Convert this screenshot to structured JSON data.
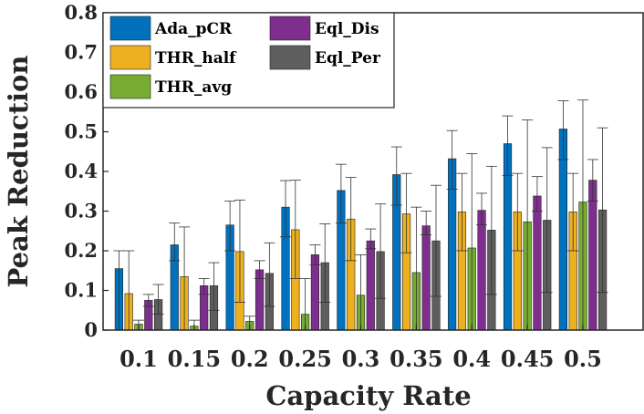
{
  "chart_data": {
    "type": "bar",
    "title": "",
    "xlabel": "Capacity Rate",
    "ylabel": "Peak Reduction",
    "ylim": [
      0,
      0.8
    ],
    "yticks": [
      "0",
      "0.1",
      "0.2",
      "0.3",
      "0.4",
      "0.5",
      "0.6",
      "0.7",
      "0.8"
    ],
    "categories": [
      "0.1",
      "0.15",
      "0.2",
      "0.25",
      "0.3",
      "0.35",
      "0.4",
      "0.45",
      "0.5"
    ],
    "legend_position": "top-left",
    "series": [
      {
        "name": "Ada_pCR",
        "color": "#0072BD",
        "values": [
          0.155,
          0.215,
          0.265,
          0.31,
          0.352,
          0.392,
          0.432,
          0.47,
          0.507
        ],
        "err_low": [
          0.0,
          0.175,
          0.2,
          0.235,
          0.27,
          0.315,
          0.355,
          0.39,
          0.43
        ],
        "err_high": [
          0.2,
          0.27,
          0.325,
          0.377,
          0.418,
          0.462,
          0.503,
          0.54,
          0.578
        ]
      },
      {
        "name": "THR_half",
        "color": "#EDB120",
        "values": [
          0.092,
          0.135,
          0.198,
          0.253,
          0.28,
          0.293,
          0.298,
          0.298,
          0.298
        ],
        "err_low": [
          0.0,
          0.0,
          0.07,
          0.13,
          0.175,
          0.195,
          0.2,
          0.2,
          0.2
        ],
        "err_high": [
          0.2,
          0.26,
          0.328,
          0.378,
          0.385,
          0.395,
          0.395,
          0.395,
          0.395
        ]
      },
      {
        "name": "THR_avg",
        "color": "#77AC30",
        "values": [
          0.015,
          0.01,
          0.022,
          0.04,
          0.088,
          0.145,
          0.207,
          0.273,
          0.323
        ],
        "err_low": [
          0.0,
          0.0,
          0.0,
          0.0,
          0.0,
          0.0,
          0.0,
          0.0,
          0.0
        ],
        "err_high": [
          0.025,
          0.025,
          0.035,
          0.13,
          0.19,
          0.31,
          0.445,
          0.53,
          0.58
        ]
      },
      {
        "name": "Eql_Dis",
        "color": "#7E2F8E",
        "values": [
          0.075,
          0.112,
          0.152,
          0.19,
          0.225,
          0.263,
          0.302,
          0.338,
          0.378
        ],
        "err_low": [
          0.06,
          0.09,
          0.13,
          0.165,
          0.205,
          0.24,
          0.265,
          0.3,
          0.325
        ],
        "err_high": [
          0.09,
          0.13,
          0.175,
          0.215,
          0.255,
          0.3,
          0.345,
          0.387,
          0.43
        ]
      },
      {
        "name": "Eql_Per",
        "color": "#5E5E5E",
        "values": [
          0.077,
          0.112,
          0.143,
          0.17,
          0.198,
          0.225,
          0.252,
          0.277,
          0.303
        ],
        "err_low": [
          0.04,
          0.05,
          0.06,
          0.07,
          0.08,
          0.085,
          0.09,
          0.095,
          0.095
        ],
        "err_high": [
          0.115,
          0.17,
          0.22,
          0.268,
          0.318,
          0.365,
          0.413,
          0.46,
          0.51
        ]
      }
    ]
  }
}
